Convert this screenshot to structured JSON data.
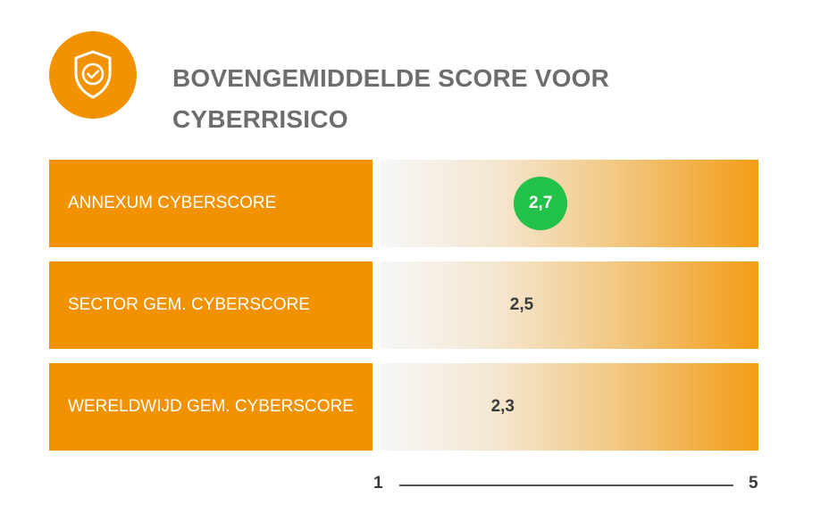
{
  "title": "BOVENGEMIDDELDE SCORE VOOR CYBERRISICO",
  "colors": {
    "accent": "#f39200",
    "highlight": "#22c14a",
    "text": "#6d6d6d"
  },
  "icon": "shield-check-icon",
  "chart_data": {
    "type": "bar",
    "categories": [
      "ANNEXUM CYBERSCORE",
      "SECTOR GEM. CYBERSCORE",
      "WERELDWIJD GEM. CYBERSCORE"
    ],
    "values": [
      2.7,
      2.5,
      2.3
    ],
    "value_labels": [
      "2,7",
      "2,5",
      "2,3"
    ],
    "highlighted": [
      true,
      false,
      false
    ],
    "axis": {
      "min_label": "1",
      "max_label": "5",
      "min": 1,
      "max": 5
    }
  }
}
